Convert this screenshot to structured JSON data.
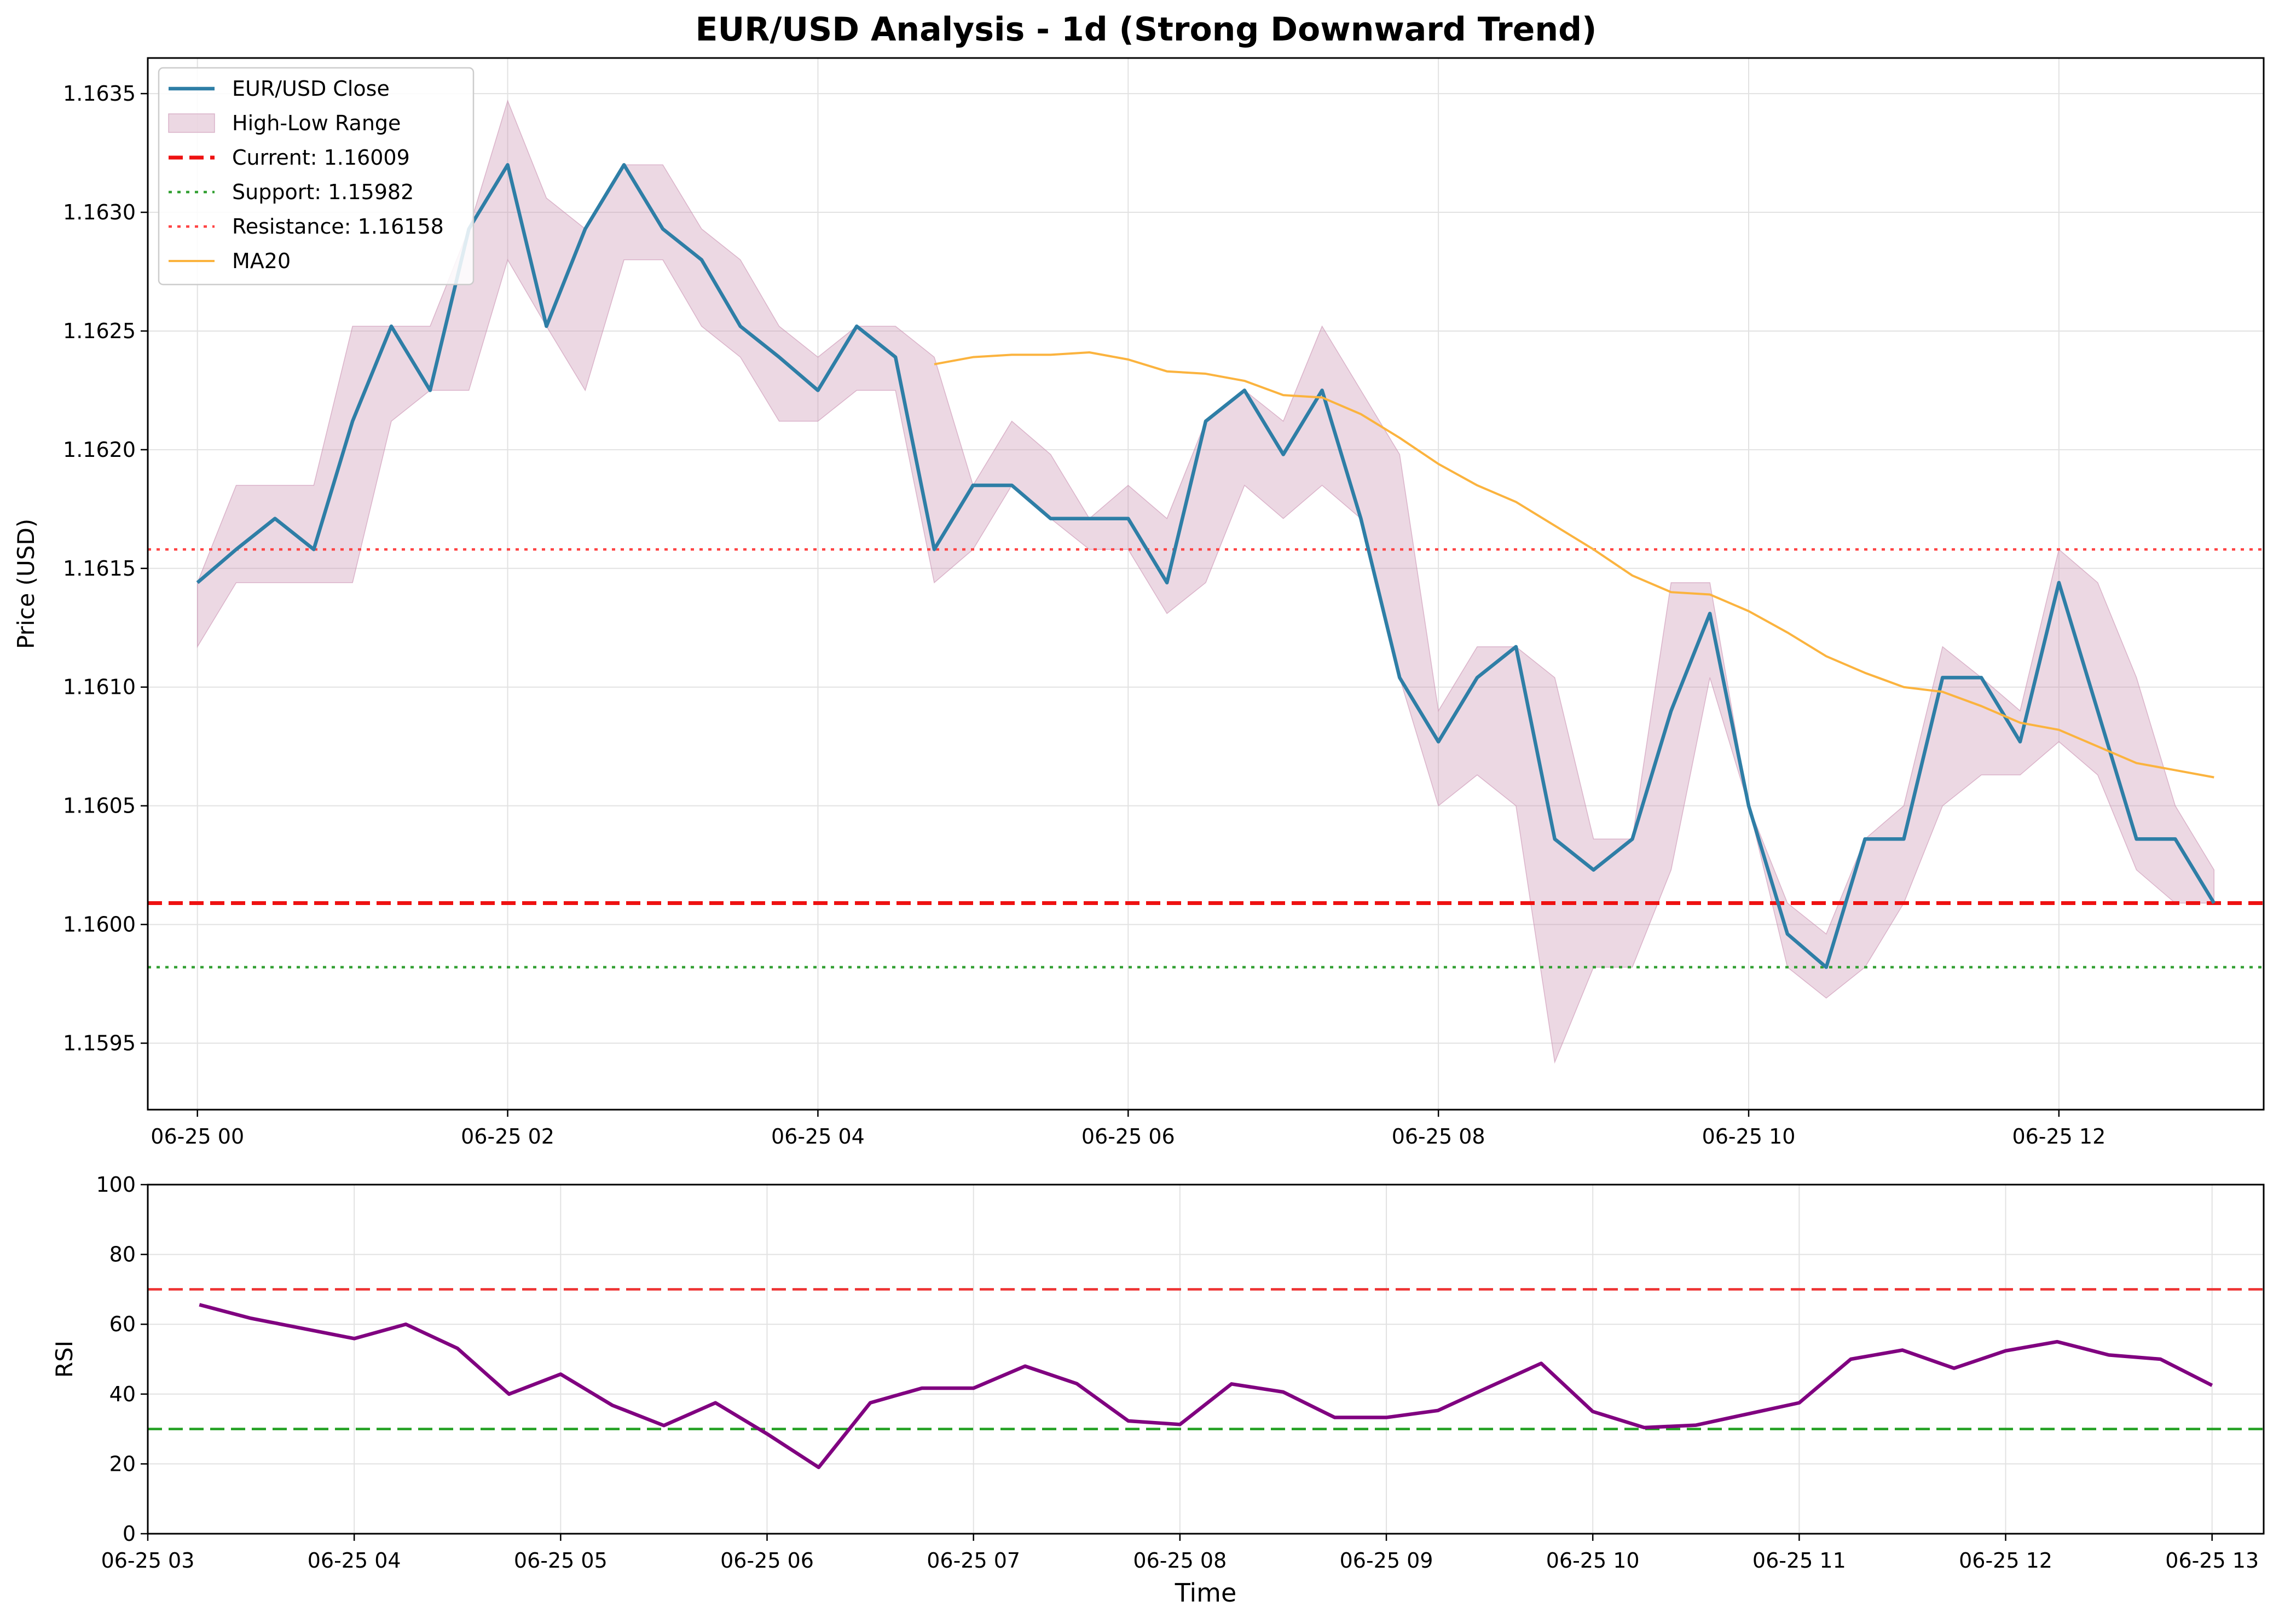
{
  "chart_data": [
    {
      "type": "line",
      "title": "EUR/USD Analysis - 1d (Strong Downward Trend)",
      "xlabel": "",
      "ylabel": "Price (USD)",
      "ylim": [
        1.15922,
        1.16365
      ],
      "xlim": [
        -0.32,
        13.32
      ],
      "grid": true,
      "legend_position": "top-left",
      "x_ticks": [
        {
          "v": 0,
          "label": "06-25 00"
        },
        {
          "v": 2,
          "label": "06-25 02"
        },
        {
          "v": 4,
          "label": "06-25 04"
        },
        {
          "v": 6,
          "label": "06-25 06"
        },
        {
          "v": 8,
          "label": "06-25 08"
        },
        {
          "v": 10,
          "label": "06-25 10"
        },
        {
          "v": 12,
          "label": "06-25 12"
        }
      ],
      "y_ticks": [
        {
          "v": 1.1595,
          "label": "1.1595"
        },
        {
          "v": 1.16,
          "label": "1.1600"
        },
        {
          "v": 1.1605,
          "label": "1.1605"
        },
        {
          "v": 1.161,
          "label": "1.1610"
        },
        {
          "v": 1.1615,
          "label": "1.1615"
        },
        {
          "v": 1.162,
          "label": "1.1620"
        },
        {
          "v": 1.1625,
          "label": "1.1625"
        },
        {
          "v": 1.163,
          "label": "1.1630"
        },
        {
          "v": 1.1635,
          "label": "1.1635"
        }
      ],
      "x": [
        0,
        0.25,
        0.5,
        0.75,
        1,
        1.25,
        1.5,
        1.75,
        2,
        2.25,
        2.5,
        2.75,
        3,
        3.25,
        3.5,
        3.75,
        4,
        4.25,
        4.5,
        4.75,
        5,
        5.25,
        5.5,
        5.75,
        6,
        6.25,
        6.5,
        6.75,
        7,
        7.25,
        7.5,
        7.75,
        8,
        8.25,
        8.5,
        8.75,
        9,
        9.25,
        9.5,
        9.75,
        10,
        10.25,
        10.5,
        10.75,
        11,
        11.25,
        11.5,
        11.75,
        12,
        12.25,
        12.5,
        12.75,
        13
      ],
      "series": [
        {
          "name": "EUR/USD Close",
          "color": "#2e7ea6",
          "values": [
            1.16144,
            1.16158,
            1.16171,
            1.16158,
            1.16212,
            1.16252,
            1.16225,
            1.16293,
            1.1632,
            1.16252,
            1.16293,
            1.1632,
            1.16293,
            1.1628,
            1.16252,
            1.16239,
            1.16225,
            1.16252,
            1.16239,
            1.16158,
            1.16185,
            1.16185,
            1.16171,
            1.16171,
            1.16171,
            1.16144,
            1.16212,
            1.16225,
            1.16198,
            1.16225,
            1.16171,
            1.16104,
            1.16077,
            1.16104,
            1.16117,
            1.16036,
            1.16023,
            1.16036,
            1.1609,
            1.16131,
            1.1605,
            1.15996,
            1.15982,
            1.16036,
            1.16036,
            1.16104,
            1.16104,
            1.16077,
            1.16144,
            1.1609,
            1.16036,
            1.16036,
            1.16009
          ]
        },
        {
          "name": "High-Low Range",
          "color": "#c98fb0",
          "high": [
            1.16144,
            1.16185,
            1.16185,
            1.16185,
            1.16252,
            1.16252,
            1.16252,
            1.16293,
            1.16347,
            1.16306,
            1.16293,
            1.1632,
            1.1632,
            1.16293,
            1.1628,
            1.16252,
            1.16239,
            1.16252,
            1.16252,
            1.16239,
            1.16185,
            1.16212,
            1.16198,
            1.16171,
            1.16185,
            1.16171,
            1.16212,
            1.16225,
            1.16212,
            1.16252,
            1.16225,
            1.16198,
            1.1609,
            1.16117,
            1.16117,
            1.16104,
            1.16036,
            1.16036,
            1.16144,
            1.16144,
            1.1605,
            1.16009,
            1.15996,
            1.16036,
            1.1605,
            1.16117,
            1.16104,
            1.1609,
            1.16158,
            1.16144,
            1.16104,
            1.1605,
            1.16023
          ],
          "low": [
            1.16117,
            1.16144,
            1.16144,
            1.16144,
            1.16144,
            1.16212,
            1.16225,
            1.16225,
            1.1628,
            1.16252,
            1.16225,
            1.1628,
            1.1628,
            1.16252,
            1.16239,
            1.16212,
            1.16212,
            1.16225,
            1.16225,
            1.16144,
            1.16158,
            1.16185,
            1.16171,
            1.16158,
            1.16158,
            1.16131,
            1.16144,
            1.16185,
            1.16171,
            1.16185,
            1.16171,
            1.16104,
            1.1605,
            1.16063,
            1.1605,
            1.15942,
            1.15982,
            1.15982,
            1.16023,
            1.16104,
            1.1605,
            1.15982,
            1.15969,
            1.15982,
            1.16009,
            1.1605,
            1.16063,
            1.16063,
            1.16077,
            1.16063,
            1.16023,
            1.16009,
            1.16009
          ]
        },
        {
          "name": "MA20",
          "color": "#fbb33e",
          "x": [
            4.75,
            5,
            5.25,
            5.5,
            5.75,
            6,
            6.25,
            6.5,
            6.75,
            7,
            7.25,
            7.5,
            7.75,
            8,
            8.25,
            8.5,
            8.75,
            9,
            9.25,
            9.5,
            9.75,
            10,
            10.25,
            10.5,
            10.75,
            11,
            11.25,
            11.5,
            11.75,
            12,
            12.25,
            12.5,
            12.75,
            13
          ],
          "values": [
            1.16236,
            1.16239,
            1.1624,
            1.1624,
            1.16241,
            1.16238,
            1.16233,
            1.16232,
            1.16229,
            1.16223,
            1.16222,
            1.16215,
            1.16205,
            1.16194,
            1.16185,
            1.16178,
            1.16168,
            1.16158,
            1.16147,
            1.1614,
            1.16139,
            1.16132,
            1.16123,
            1.16113,
            1.16106,
            1.161,
            1.16098,
            1.16092,
            1.16085,
            1.16082,
            1.16075,
            1.16068,
            1.16065,
            1.16062
          ]
        }
      ],
      "hlines": [
        {
          "name": "Current: 1.16009",
          "value": 1.16009,
          "color": "#ee1111",
          "style": "dashed"
        },
        {
          "name": "Support: 1.15982",
          "value": 1.15982,
          "color": "#33a033",
          "style": "dotted"
        },
        {
          "name": "Resistance: 1.16158",
          "value": 1.16158,
          "color": "#ff4444",
          "style": "dotted"
        }
      ]
    },
    {
      "type": "line",
      "title": "",
      "xlabel": "Time",
      "ylabel": "RSI",
      "ylim": [
        0,
        100
      ],
      "xlim": [
        3.0,
        13.25
      ],
      "grid": true,
      "x_ticks": [
        {
          "v": 3,
          "label": "06-25 03"
        },
        {
          "v": 4,
          "label": "06-25 04"
        },
        {
          "v": 5,
          "label": "06-25 05"
        },
        {
          "v": 6,
          "label": "06-25 06"
        },
        {
          "v": 7,
          "label": "06-25 07"
        },
        {
          "v": 8,
          "label": "06-25 08"
        },
        {
          "v": 9,
          "label": "06-25 09"
        },
        {
          "v": 10,
          "label": "06-25 10"
        },
        {
          "v": 11,
          "label": "06-25 11"
        },
        {
          "v": 12,
          "label": "06-25 12"
        },
        {
          "v": 13,
          "label": "06-25 13"
        }
      ],
      "y_ticks": [
        {
          "v": 0,
          "label": "0"
        },
        {
          "v": 20,
          "label": "20"
        },
        {
          "v": 40,
          "label": "40"
        },
        {
          "v": 60,
          "label": "60"
        },
        {
          "v": 80,
          "label": "80"
        },
        {
          "v": 100,
          "label": "100"
        }
      ],
      "x": [
        3.25,
        3.5,
        3.75,
        4,
        4.25,
        4.5,
        4.75,
        5,
        5.25,
        5.5,
        5.75,
        6,
        6.25,
        6.5,
        6.75,
        7,
        7.25,
        7.5,
        7.75,
        8,
        8.25,
        8.5,
        8.75,
        9,
        9.25,
        9.5,
        9.75,
        10,
        10.25,
        10.5,
        10.75,
        11,
        11.25,
        11.5,
        11.75,
        12,
        12.25,
        12.5,
        12.75,
        13
      ],
      "series": [
        {
          "name": "",
          "color": "#800080",
          "values": [
            65.6,
            61.7,
            58.8,
            55.9,
            60.0,
            53.1,
            40.0,
            45.7,
            36.8,
            31.0,
            37.5,
            28.6,
            19.0,
            37.5,
            41.7,
            41.7,
            48.0,
            43.0,
            32.3,
            31.3,
            42.9,
            40.6,
            33.3,
            33.3,
            35.3,
            42.1,
            48.8,
            35.0,
            30.4,
            31.1,
            34.3,
            37.5,
            50.0,
            52.6,
            47.4,
            52.4,
            55.0,
            51.2,
            50.0,
            42.5
          ]
        }
      ],
      "hlines": [
        {
          "value": 70,
          "color": "#ee3333",
          "style": "dashed"
        },
        {
          "value": 30,
          "color": "#22a022",
          "style": "dashed"
        }
      ]
    }
  ]
}
